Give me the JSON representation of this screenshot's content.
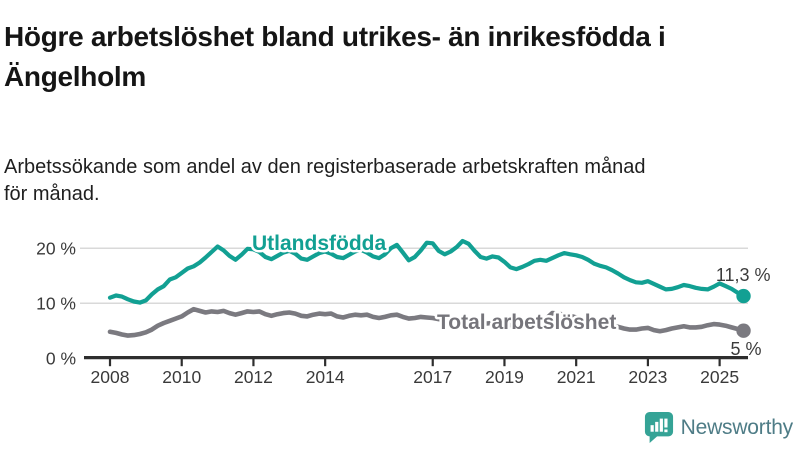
{
  "header": {
    "title_lines": [
      "Högre arbetslöshet bland utrikes- än inrikesfödda i",
      "Ängelholm"
    ],
    "subtitle_lines": [
      "Arbetssökande som andel av den registerbaserade arbetskraften månad",
      "för månad."
    ]
  },
  "footer": {
    "brand_name": "Newsworthy",
    "logo_icon": "newsworthy-chart-bubble-icon",
    "brand_color": "#35a396",
    "brand_text_color": "#4e7c86"
  },
  "chart_data": {
    "type": "line",
    "title": "Högre arbetslöshet bland utrikes- än inrikesfödda i Ängelholm",
    "subtitle": "Arbetssökande som andel av den registerbaserade arbetskraften månad för månad.",
    "xlabel": "",
    "ylabel": "",
    "grid": "horizontal",
    "legend_position": "inline-labels",
    "xlim": [
      2007.3,
      2025.85
    ],
    "ylim": [
      0,
      26
    ],
    "x_start": 2008.0,
    "x_step": 0.16667,
    "x_unit": "decimal-year (monthly data, every 2nd month sampled)",
    "y_unit": "%",
    "x_ticks": [
      {
        "value": 2008,
        "label": "2008"
      },
      {
        "value": 2010,
        "label": "2010"
      },
      {
        "value": 2012,
        "label": "2012"
      },
      {
        "value": 2014,
        "label": "2014"
      },
      {
        "value": 2017,
        "label": "2017"
      },
      {
        "value": 2019,
        "label": "2019"
      },
      {
        "value": 2021,
        "label": "2021"
      },
      {
        "value": 2023,
        "label": "2023"
      },
      {
        "value": 2025,
        "label": "2025"
      }
    ],
    "y_ticks": [
      {
        "value": 0,
        "label": "0 %"
      },
      {
        "value": 10,
        "label": "10 %"
      },
      {
        "value": 20,
        "label": "20 %"
      }
    ],
    "series": [
      {
        "name": "Utlandsfödda",
        "key": "utlandsfodda",
        "color": "#12a093",
        "end_label": "11,3 %",
        "end_value": 11.3,
        "values": [
          11.0,
          11.4,
          11.2,
          10.7,
          10.3,
          10.1,
          10.5,
          11.6,
          12.5,
          13.1,
          14.3,
          14.7,
          15.5,
          16.3,
          16.7,
          17.4,
          18.3,
          19.3,
          20.3,
          19.6,
          18.6,
          17.9,
          18.8,
          19.9,
          19.8,
          19.3,
          18.4,
          18.0,
          18.6,
          19.2,
          19.5,
          19.0,
          18.1,
          17.9,
          18.5,
          19.1,
          19.4,
          19.0,
          18.4,
          18.2,
          18.8,
          19.4,
          19.7,
          19.2,
          18.5,
          18.2,
          18.9,
          20.0,
          20.6,
          19.2,
          17.8,
          18.4,
          19.6,
          21.0,
          20.9,
          19.5,
          18.9,
          19.4,
          20.2,
          21.3,
          20.8,
          19.5,
          18.4,
          18.1,
          18.5,
          18.3,
          17.5,
          16.5,
          16.2,
          16.6,
          17.1,
          17.7,
          17.9,
          17.7,
          18.2,
          18.7,
          19.1,
          18.9,
          18.7,
          18.4,
          17.9,
          17.2,
          16.8,
          16.5,
          16.0,
          15.4,
          14.7,
          14.2,
          13.8,
          13.7,
          14.0,
          13.5,
          13.0,
          12.5,
          12.6,
          12.9,
          13.3,
          13.1,
          12.8,
          12.6,
          12.5,
          13.0,
          13.6,
          13.1,
          12.6,
          11.9,
          11.3
        ]
      },
      {
        "name": "Total arbetslöshet",
        "key": "total-arbetsloshet",
        "color": "#7b7a80",
        "end_label": "5 %",
        "end_value": 5.0,
        "values": [
          4.8,
          4.6,
          4.3,
          4.1,
          4.2,
          4.4,
          4.7,
          5.2,
          5.9,
          6.4,
          6.8,
          7.2,
          7.6,
          8.3,
          8.9,
          8.6,
          8.3,
          8.5,
          8.4,
          8.6,
          8.2,
          7.9,
          8.2,
          8.5,
          8.4,
          8.5,
          8.0,
          7.7,
          8.0,
          8.2,
          8.3,
          8.1,
          7.7,
          7.6,
          7.9,
          8.1,
          8.0,
          8.1,
          7.6,
          7.4,
          7.7,
          7.9,
          7.8,
          7.9,
          7.5,
          7.3,
          7.5,
          7.8,
          7.9,
          7.5,
          7.2,
          7.3,
          7.5,
          7.4,
          7.3,
          7.1,
          6.9,
          6.8,
          6.9,
          6.9,
          6.8,
          6.6,
          6.4,
          6.3,
          6.4,
          6.3,
          6.2,
          6.0,
          5.9,
          6.0,
          6.1,
          6.2,
          6.3,
          7.2,
          8.2,
          8.1,
          7.9,
          7.7,
          7.4,
          7.1,
          6.8,
          6.5,
          6.3,
          6.1,
          5.9,
          5.7,
          5.4,
          5.2,
          5.2,
          5.4,
          5.5,
          5.1,
          4.9,
          5.1,
          5.4,
          5.6,
          5.8,
          5.6,
          5.6,
          5.7,
          6.0,
          6.2,
          6.1,
          5.9,
          5.6,
          5.3,
          5.0
        ]
      }
    ],
    "colors": {
      "grid": "#d9d9d9",
      "axis": "#2e2e2e",
      "tick_text": "#3a3a3a",
      "value_label_text": "#3c3c3c",
      "series_label_total": "#76757b"
    }
  }
}
